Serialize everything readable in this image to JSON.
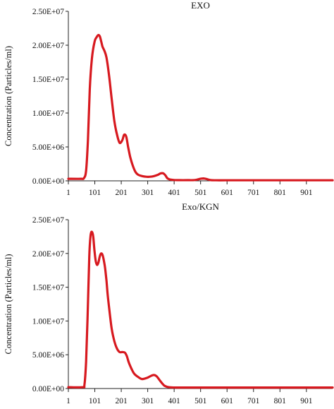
{
  "chart_data": [
    {
      "type": "line",
      "title": "EXO",
      "xlabel": "",
      "ylabel": "Concentration (Particles/ml)",
      "xlim": [
        1,
        1000
      ],
      "ylim": [
        0,
        25000000
      ],
      "x_ticks": [
        "1",
        "101",
        "201",
        "301",
        "401",
        "501",
        "601",
        "701",
        "801",
        "901"
      ],
      "y_ticks": [
        "0.00E+00",
        "5.00E+06",
        "1.00E+07",
        "1.50E+07",
        "2.00E+07",
        "2.50E+07"
      ],
      "grid": false,
      "legend": "none",
      "color": "#d7191f",
      "x": [
        1,
        50,
        60,
        68,
        75,
        82,
        90,
        100,
        108,
        115,
        120,
        125,
        130,
        137,
        145,
        155,
        165,
        175,
        185,
        195,
        205,
        212,
        220,
        227,
        235,
        245,
        255,
        265,
        280,
        295,
        310,
        325,
        340,
        350,
        360,
        368,
        375,
        385,
        400,
        420,
        450,
        480,
        500,
        512,
        525,
        540,
        560,
        600,
        700,
        800,
        900,
        1000
      ],
      "y": [
        300000,
        300000,
        400000,
        1500000,
        6000000,
        13500000,
        18000000,
        20500000,
        21200000,
        21500000,
        21300000,
        20600000,
        19800000,
        19200000,
        18200000,
        15500000,
        12000000,
        8800000,
        6800000,
        5600000,
        6000000,
        6800000,
        6500000,
        5000000,
        3500000,
        2200000,
        1300000,
        900000,
        700000,
        600000,
        600000,
        700000,
        900000,
        1100000,
        1100000,
        800000,
        400000,
        200000,
        120000,
        100000,
        100000,
        120000,
        300000,
        350000,
        250000,
        100000,
        80000,
        80000,
        80000,
        80000,
        80000,
        80000
      ]
    },
    {
      "type": "line",
      "title": "Exo/KGN",
      "xlabel": "",
      "ylabel": "Concentration (Particles/ml)",
      "xlim": [
        1,
        1000
      ],
      "ylim": [
        0,
        25000000
      ],
      "x_ticks": [
        "1",
        "101",
        "201",
        "301",
        "401",
        "501",
        "601",
        "701",
        "801",
        "901"
      ],
      "y_ticks": [
        "0.00E+00",
        "5.00E+06",
        "1.00E+07",
        "1.50E+07",
        "2.00E+07",
        "2.50E+07"
      ],
      "grid": false,
      "legend": "none",
      "color": "#d7191f",
      "x": [
        1,
        55,
        62,
        68,
        74,
        80,
        85,
        90,
        95,
        100,
        105,
        110,
        115,
        120,
        125,
        130,
        135,
        140,
        145,
        150,
        158,
        165,
        175,
        185,
        195,
        205,
        215,
        222,
        230,
        240,
        250,
        265,
        280,
        300,
        315,
        325,
        335,
        345,
        355,
        365,
        380,
        400,
        450,
        500,
        600,
        700,
        800,
        900,
        1000
      ],
      "y": [
        200000,
        200000,
        600000,
        4000000,
        11000000,
        19500000,
        22600000,
        23200000,
        22500000,
        20300000,
        18800000,
        18300000,
        18700000,
        19600000,
        20000000,
        19800000,
        19000000,
        17800000,
        16000000,
        13800000,
        11000000,
        8800000,
        7000000,
        5900000,
        5400000,
        5400000,
        5300000,
        4800000,
        3800000,
        2900000,
        2200000,
        1700000,
        1400000,
        1600000,
        1900000,
        2000000,
        1800000,
        1300000,
        800000,
        400000,
        200000,
        150000,
        150000,
        150000,
        150000,
        150000,
        150000,
        150000,
        150000
      ]
    }
  ]
}
